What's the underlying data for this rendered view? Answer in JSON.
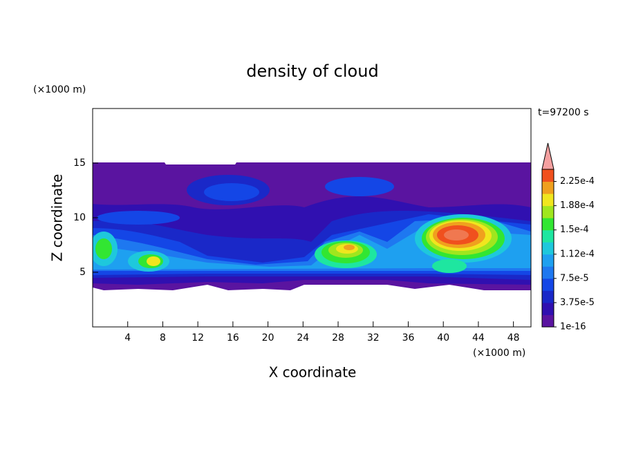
{
  "chart_data": {
    "type": "contour",
    "title": "density of cloud",
    "xlabel": "X coordinate",
    "ylabel": "Z coordinate",
    "xunit": "(×1000 m)",
    "yunit": "(×1000 m)",
    "annotation": "t=97200 s",
    "xlim": [
      0,
      50
    ],
    "ylim": [
      0,
      20
    ],
    "xticks": [
      4,
      8,
      12,
      16,
      20,
      24,
      28,
      32,
      36,
      40,
      44,
      48
    ],
    "yticks": [
      5,
      10,
      15
    ],
    "colorbar": {
      "lim": [
        1e-16,
        0.00024375
      ],
      "colors": [
        "#5a14a0",
        "#3010b0",
        "#1a28c8",
        "#1446e6",
        "#1e78f0",
        "#1ea0f0",
        "#1ec8dc",
        "#1ee6a0",
        "#32e632",
        "#a0e61e",
        "#f0e61e",
        "#f0a01e",
        "#f0501e"
      ],
      "extend_color": "#f4a0a0",
      "ticks": [
        {
          "value": 1e-16,
          "label": "1e-16"
        },
        {
          "value": 3.75e-05,
          "label": "3.75e-5"
        },
        {
          "value": 7.5e-05,
          "label": "7.5e-5"
        },
        {
          "value": 0.0001125,
          "label": "1.12e-4"
        },
        {
          "value": 0.00015,
          "label": "1.5e-4"
        },
        {
          "value": 0.0001875,
          "label": "1.88e-4"
        },
        {
          "value": 0.000225,
          "label": "2.25e-4"
        }
      ]
    }
  }
}
